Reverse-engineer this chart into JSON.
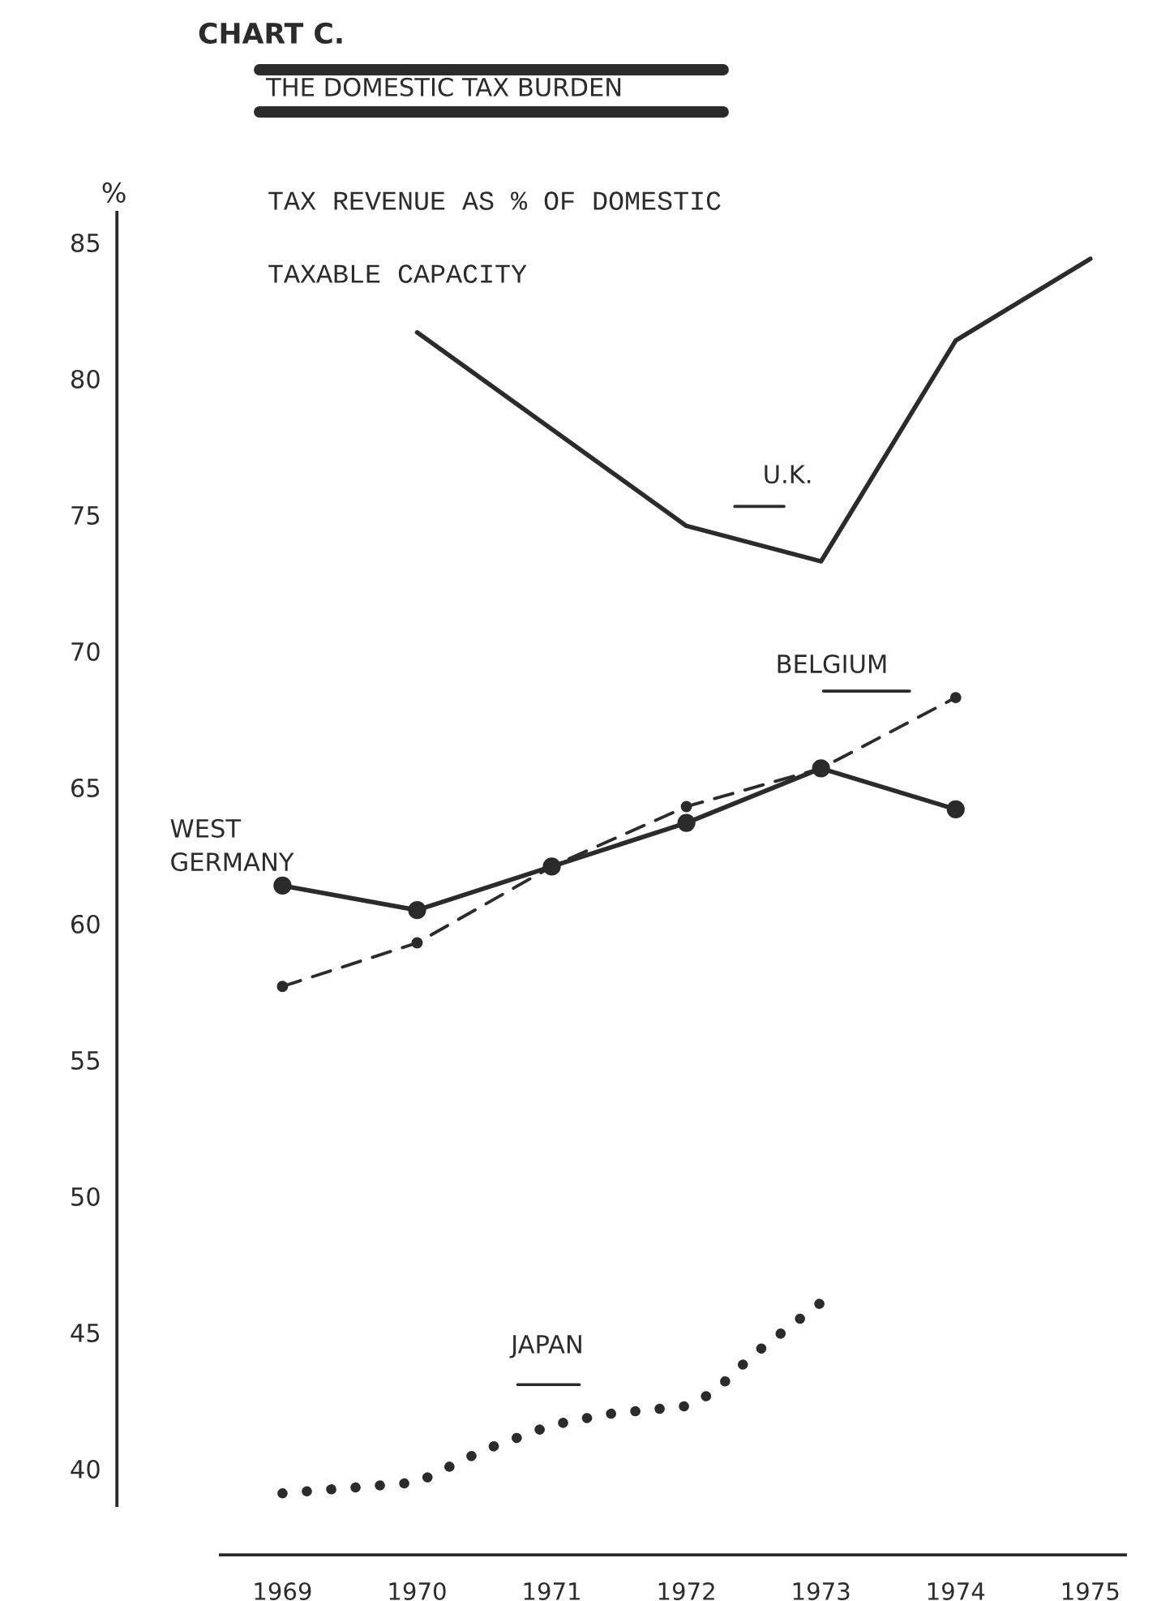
{
  "chart_data": {
    "type": "line",
    "title": "CHART C.",
    "subtitle": "THE DOMESTIC TAX BURDEN",
    "ylabel": "%",
    "annotations": [
      "TAX REVENUE AS % OF DOMESTIC TAXABLE CAPACITY"
    ],
    "xlim": [
      1968.54,
      1975.26
    ],
    "xticks": [
      1969,
      1970,
      1971,
      1972,
      1973,
      1974,
      1975
    ],
    "ylim": [
      38.66,
      86.1
    ],
    "yticks": [
      40,
      45,
      50,
      55,
      60,
      65,
      70,
      75,
      80,
      85
    ],
    "grid": false,
    "legend": false,
    "series": [
      {
        "name": "U.K.",
        "color": "#2b2b2b",
        "line_style": "solid",
        "marker": "none",
        "x": [
          1970,
          1972,
          1973,
          1974,
          1975
        ],
        "values": [
          81.7,
          74.6,
          73.3,
          81.4,
          84.4
        ]
      },
      {
        "name": "WEST GERMANY",
        "color": "#2b2b2b",
        "line_style": "solid",
        "marker": "circle",
        "x": [
          1969,
          1970,
          1971,
          1972,
          1973,
          1974
        ],
        "values": [
          61.4,
          60.5,
          62.1,
          63.7,
          65.7,
          64.2
        ]
      },
      {
        "name": "BELGIUM",
        "color": "#2b2b2b",
        "line_style": "dashed",
        "marker": "circle",
        "x": [
          1969,
          1970,
          1971,
          1972,
          1973,
          1974
        ],
        "values": [
          57.7,
          59.3,
          62.1,
          64.3,
          65.7,
          68.3
        ]
      },
      {
        "name": "JAPAN",
        "color": "#2b2b2b",
        "line_style": "dotted",
        "marker": "none",
        "x": [
          1969,
          1970,
          1970.5,
          1971,
          1971.4,
          1972,
          1972.2,
          1972.5,
          1973
        ],
        "values": [
          39.1,
          39.5,
          40.7,
          41.6,
          42.0,
          42.3,
          42.8,
          44.2,
          46.1
        ]
      }
    ]
  }
}
